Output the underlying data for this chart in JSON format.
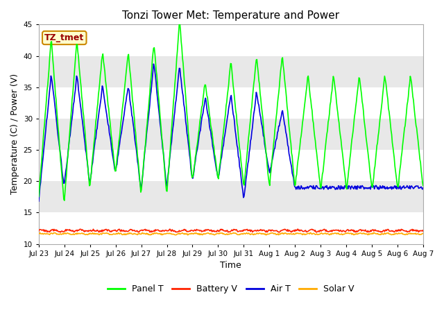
{
  "title": "Tonzi Tower Met: Temperature and Power",
  "xlabel": "Time",
  "ylabel": "Temperature (C) / Power (V)",
  "ylim": [
    10,
    45
  ],
  "yticks": [
    10,
    15,
    20,
    25,
    30,
    35,
    40,
    45
  ],
  "xtick_labels": [
    "Jul 23",
    "Jul 24",
    "Jul 25",
    "Jul 26",
    "Jul 27",
    "Jul 28",
    "Jul 29",
    "Jul 30",
    "Jul 31",
    "Aug 1",
    "Aug 2",
    "Aug 3",
    "Aug 4",
    "Aug 5",
    "Aug 6",
    "Aug 7"
  ],
  "annotation_text": "TZ_tmet",
  "annotation_bg": "#ffffcc",
  "annotation_border": "#cc8800",
  "annotation_text_color": "#990000",
  "panel_t_color": "#00ff00",
  "battery_v_color": "#ff2200",
  "air_t_color": "#0000dd",
  "solar_v_color": "#ffaa00",
  "bg_light": "#e8e8e8",
  "bg_dark": "#d0d0d0",
  "grid_color": "#ffffff",
  "legend_labels": [
    "Panel T",
    "Battery V",
    "Air T",
    "Solar V"
  ],
  "n_days": 15,
  "panel_peaks": [
    21.2,
    42.0,
    21.0,
    42.0,
    20.5,
    40.2,
    33.5,
    40.0,
    21.5,
    41.5,
    19.0,
    45.0,
    43.0,
    35.5,
    38.5,
    38.5,
    43.0,
    39.5,
    40.0,
    39.5,
    43.0,
    36.5
  ],
  "panel_mins": [
    17.5,
    21.0,
    17.0,
    21.0,
    19.5,
    20.0,
    21.5,
    19.0,
    18.5,
    19.5,
    18.5,
    20.0,
    20.5,
    19.5,
    20.5,
    17.5,
    19.5,
    19.5,
    19.5,
    19.5,
    19.5,
    19.0
  ],
  "air_peaks": [
    31.5,
    36.5,
    21.0,
    36.5,
    20.0,
    35.0,
    31.0,
    35.0,
    21.5,
    38.5,
    37.5,
    38.0,
    27.5,
    33.0,
    25.5,
    33.5,
    36.5,
    34.0,
    30.5,
    31.0,
    22.0,
    19.0
  ],
  "air_mins": [
    17.0,
    21.0,
    19.5,
    21.0,
    20.0,
    21.5,
    21.5,
    19.0,
    19.0,
    19.5,
    19.5,
    20.5,
    20.5,
    20.5,
    20.5,
    14.0,
    17.5,
    17.5,
    21.5,
    21.5,
    19.0,
    19.0
  ],
  "battery_v_value": 12.1,
  "solar_v_value": 11.6,
  "linewidth": 1.2
}
